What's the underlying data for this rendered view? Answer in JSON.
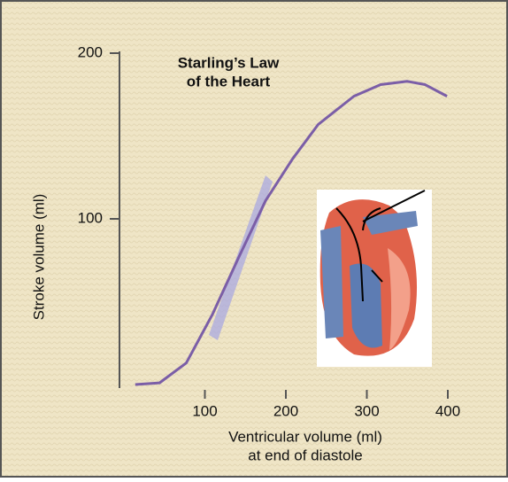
{
  "chart_data": {
    "type": "line",
    "title": [
      "Starling’s Law",
      "of the Heart"
    ],
    "xlabel": [
      "Ventricular volume (ml)",
      "at end of diastole"
    ],
    "ylabel": "Stroke volume (ml)",
    "x": [
      14,
      44,
      77,
      109,
      142,
      175,
      208,
      240,
      284,
      317,
      350,
      372,
      399
    ],
    "series": [
      {
        "color": "#7b5ea7",
        "values": [
          0,
          1,
          13,
          42,
          77,
          111,
          136,
          157,
          174,
          181,
          183,
          181,
          174
        ]
      }
    ],
    "xlim": [
      0,
      400
    ],
    "xticks": [
      100,
      200,
      300,
      400
    ],
    "ylim": [
      0,
      200
    ],
    "yticks": [
      100,
      200
    ]
  }
}
